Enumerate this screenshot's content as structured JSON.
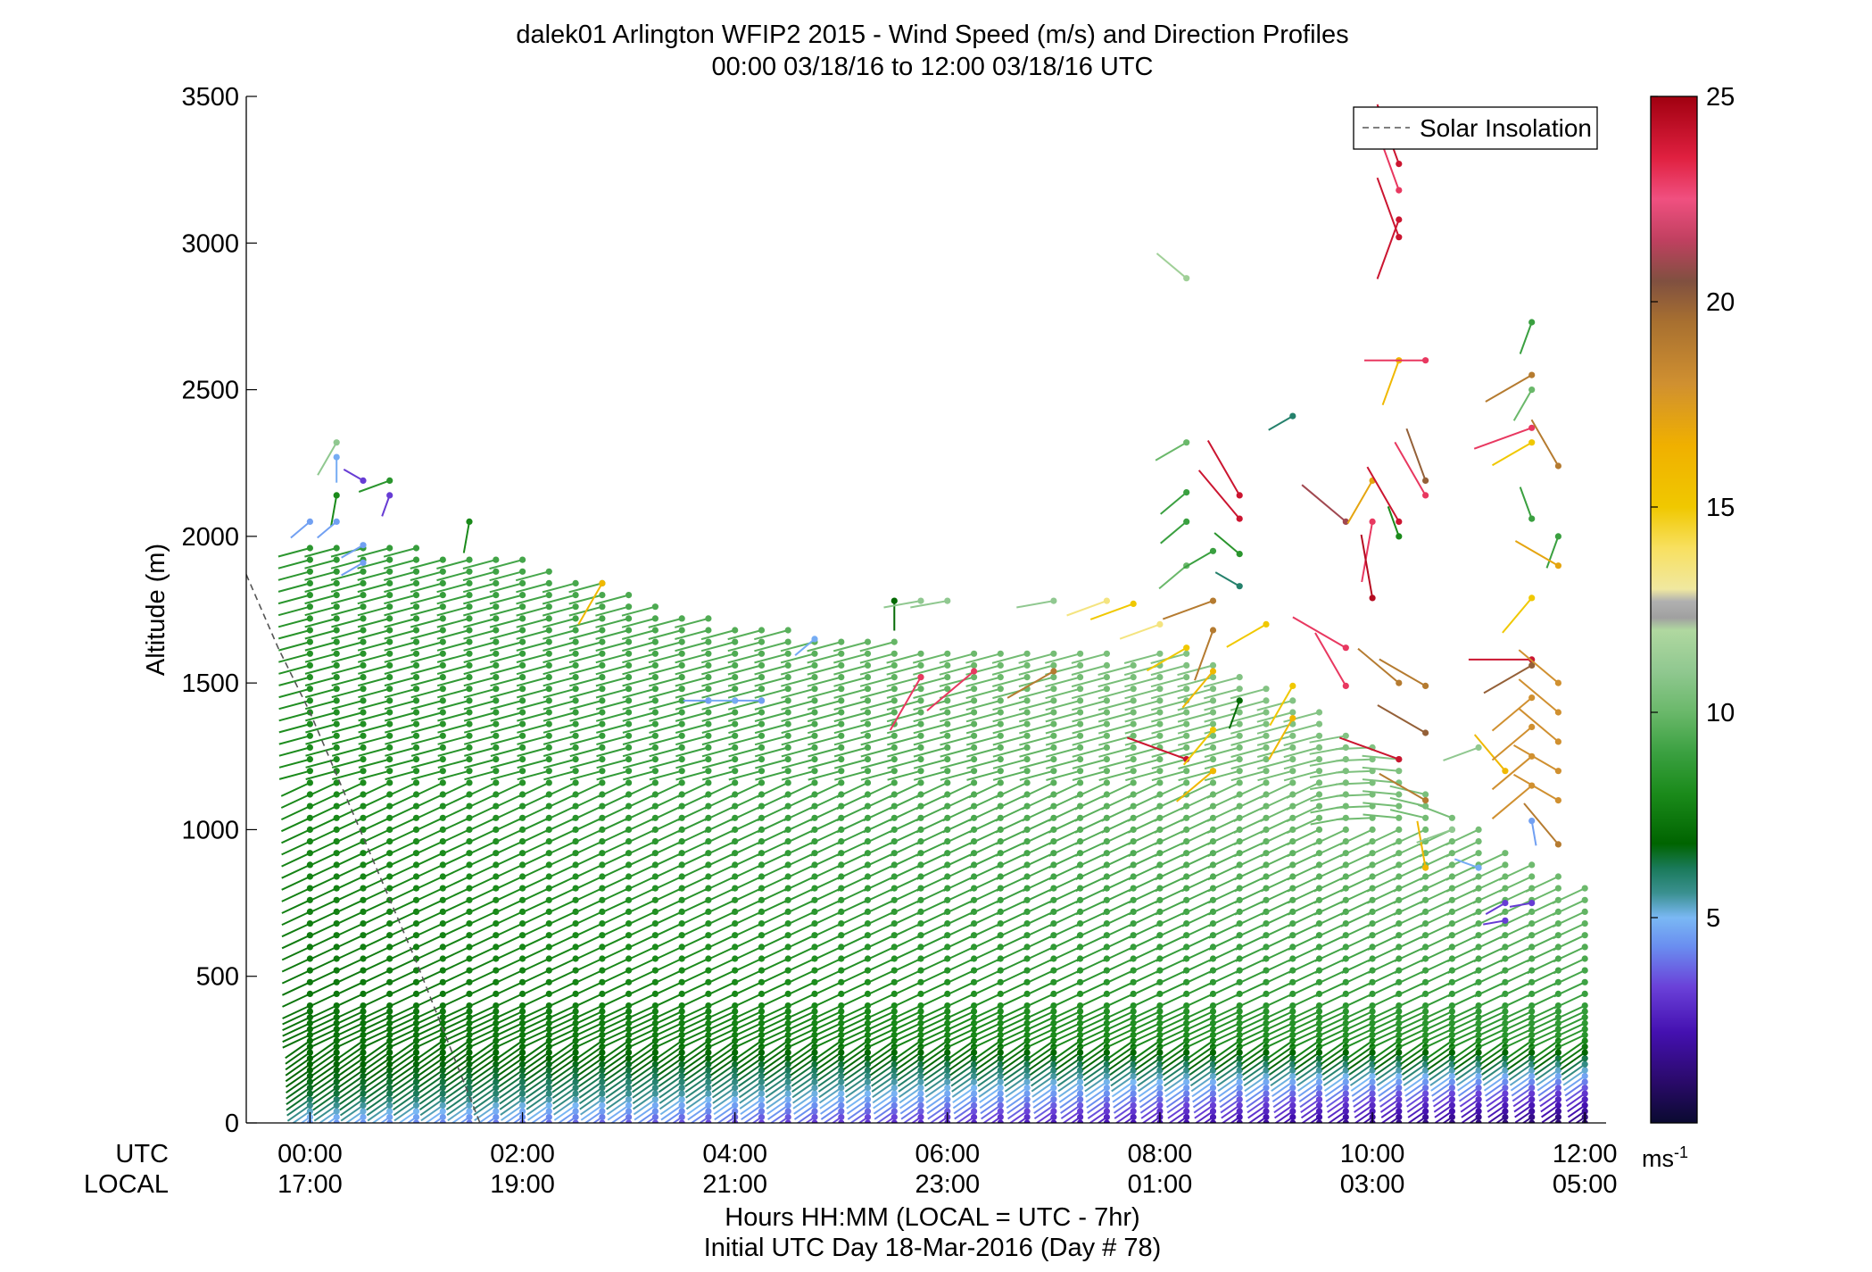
{
  "chart_data": {
    "type": "wind-barb-profile",
    "title": "dalek01 Arlington WFIP2 2015 - Wind Speed (m/s) and Direction Profiles",
    "subtitle": "00:00 03/18/16 to 12:00 03/18/16  UTC",
    "ylabel": "Altitude (m)",
    "xlabel": "Hours HH:MM  (LOCAL = UTC - 7hr)",
    "xlabel2": "Initial UTC Day 18-Mar-2016 (Day # 78)",
    "utc_label": "UTC",
    "local_label": "LOCAL",
    "xlim_hours": [
      -0.6,
      12.2
    ],
    "ylim": [
      0,
      3500
    ],
    "y_ticks": [
      0,
      500,
      1000,
      1500,
      2000,
      2500,
      3000,
      3500
    ],
    "x_ticks": [
      {
        "hour": 0,
        "utc": "00:00",
        "local": "17:00"
      },
      {
        "hour": 2,
        "utc": "02:00",
        "local": "19:00"
      },
      {
        "hour": 4,
        "utc": "04:00",
        "local": "21:00"
      },
      {
        "hour": 6,
        "utc": "06:00",
        "local": "23:00"
      },
      {
        "hour": 8,
        "utc": "08:00",
        "local": "01:00"
      },
      {
        "hour": 10,
        "utc": "10:00",
        "local": "03:00"
      },
      {
        "hour": 12,
        "utc": "12:00",
        "local": "05:00"
      }
    ],
    "legend": {
      "label": "Solar Insolation",
      "position": "top-right"
    },
    "solar_insolation_line": [
      [
        -0.6,
        1870
      ],
      [
        -0.3,
        1620
      ],
      [
        0.0,
        1400
      ],
      [
        1.0,
        550
      ],
      [
        1.6,
        0
      ]
    ],
    "colorbar": {
      "range": [
        0,
        25
      ],
      "ticks": [
        5,
        10,
        15,
        20,
        25
      ],
      "unit_label": "ms",
      "unit_exp": "-1",
      "stops": [
        [
          0,
          "#0a0a30"
        ],
        [
          1,
          "#2a0a6a"
        ],
        [
          2.2,
          "#4410b0"
        ],
        [
          3.3,
          "#6a40d8"
        ],
        [
          4.3,
          "#6a8ef0"
        ],
        [
          5.0,
          "#7ab8f4"
        ],
        [
          5.6,
          "#3a9090"
        ],
        [
          6.2,
          "#1a7a5a"
        ],
        [
          6.8,
          "#006400"
        ],
        [
          8.0,
          "#1a8a1a"
        ],
        [
          9.0,
          "#3aa040"
        ],
        [
          10.0,
          "#6ab86a"
        ],
        [
          11.0,
          "#90c890"
        ],
        [
          12.0,
          "#b0d8a0"
        ],
        [
          12.3,
          "#a0a0a0"
        ],
        [
          12.7,
          "#b0b0b0"
        ],
        [
          13.0,
          "#f0e8a0"
        ],
        [
          14.0,
          "#f8e060"
        ],
        [
          15.0,
          "#f0c800"
        ],
        [
          16.5,
          "#f0b000"
        ],
        [
          18.0,
          "#d09030"
        ],
        [
          19.5,
          "#a87030"
        ],
        [
          20.5,
          "#805040"
        ],
        [
          21.5,
          "#c04060"
        ],
        [
          22.5,
          "#f05080"
        ],
        [
          23.5,
          "#e02040"
        ],
        [
          25,
          "#a00010"
        ]
      ]
    },
    "profile_times_hours": [
      0,
      0.25,
      0.5,
      0.75,
      1,
      1.25,
      1.5,
      1.75,
      2,
      2.25,
      2.5,
      2.75,
      3,
      3.25,
      3.5,
      3.75,
      4,
      4.25,
      4.5,
      4.75,
      5,
      5.25,
      5.5,
      5.75,
      6,
      6.25,
      6.5,
      6.75,
      7,
      7.25,
      7.5,
      7.75,
      8,
      8.25,
      8.5,
      8.75,
      9,
      9.25,
      9.5,
      9.75,
      10,
      10.25,
      10.5,
      10.75,
      11,
      11.25,
      11.5,
      11.75,
      12
    ],
    "profile_top_m": [
      1970,
      1960,
      1960,
      1960,
      1960,
      1950,
      1930,
      1920,
      1920,
      1900,
      1870,
      1850,
      1820,
      1780,
      1750,
      1730,
      1700,
      1690,
      1680,
      1670,
      1660,
      1650,
      1640,
      1630,
      1630,
      1620,
      1620,
      1610,
      1600,
      1600,
      1600,
      1590,
      1600,
      1600,
      1590,
      1550,
      1500,
      1450,
      1400,
      1350,
      1300,
      1250,
      1150,
      1050,
      1000,
      950,
      900,
      850,
      800
    ],
    "profile_level_spacing_m": 40,
    "speed_model": {
      "levels_m": [
        0,
        100,
        300,
        700,
        1200,
        1800,
        3300
      ],
      "early_ms": [
        4.5,
        6.5,
        7.2,
        7.6,
        8.0,
        8.5,
        9.0
      ],
      "late_ms": [
        1.0,
        3.0,
        8.5,
        9.8,
        11.0,
        12.0,
        22.0
      ]
    },
    "direction_model": {
      "low_deg": 235,
      "mid_deg": 245,
      "high_deg": 255,
      "late_upper_deg": 330
    },
    "scattered_observations": [
      {
        "h": 0.0,
        "z": 2050,
        "s": 4.6,
        "d": 230
      },
      {
        "h": 0.25,
        "z": 2320,
        "s": 11,
        "d": 210
      },
      {
        "h": 0.25,
        "z": 2270,
        "s": 4.8,
        "d": 180
      },
      {
        "h": 0.25,
        "z": 2140,
        "s": 8,
        "d": 190
      },
      {
        "h": 0.25,
        "z": 2050,
        "s": 4.6,
        "d": 230
      },
      {
        "h": 0.5,
        "z": 2190,
        "s": 3.2,
        "d": 300
      },
      {
        "h": 0.5,
        "z": 1970,
        "s": 4.6,
        "d": 240
      },
      {
        "h": 0.5,
        "z": 1910,
        "s": 4.6,
        "d": 240
      },
      {
        "h": 0.75,
        "z": 2190,
        "s": 8.5,
        "d": 250
      },
      {
        "h": 0.75,
        "z": 2140,
        "s": 3.2,
        "d": 200
      },
      {
        "h": 1.5,
        "z": 2050,
        "s": 8,
        "d": 190
      },
      {
        "h": 2.75,
        "z": 1840,
        "s": 16,
        "d": 210
      },
      {
        "h": 3.75,
        "z": 1440,
        "s": 4.6,
        "d": 270
      },
      {
        "h": 4.0,
        "z": 1440,
        "s": 4.8,
        "d": 270
      },
      {
        "h": 4.25,
        "z": 1440,
        "s": 4.6,
        "d": 270
      },
      {
        "h": 4.75,
        "z": 1650,
        "s": 4.8,
        "d": 230
      },
      {
        "h": 5.5,
        "z": 1780,
        "s": 7,
        "d": 180
      },
      {
        "h": 5.75,
        "z": 1780,
        "s": 11,
        "d": 260
      },
      {
        "h": 6.0,
        "z": 1780,
        "s": 11,
        "d": 260
      },
      {
        "h": 5.75,
        "z": 1520,
        "s": 23,
        "d": 210
      },
      {
        "h": 6.25,
        "z": 1540,
        "s": 23,
        "d": 230
      },
      {
        "h": 7.0,
        "z": 1780,
        "s": 11,
        "d": 260
      },
      {
        "h": 7.0,
        "z": 1540,
        "s": 19,
        "d": 240
      },
      {
        "h": 7.5,
        "z": 1780,
        "s": 13.5,
        "d": 250
      },
      {
        "h": 7.75,
        "z": 1770,
        "s": 15,
        "d": 250
      },
      {
        "h": 8.0,
        "z": 1700,
        "s": 13.5,
        "d": 250
      },
      {
        "h": 8.25,
        "z": 2880,
        "s": 11.5,
        "d": 310
      },
      {
        "h": 8.25,
        "z": 2320,
        "s": 10,
        "d": 240
      },
      {
        "h": 8.25,
        "z": 2150,
        "s": 9,
        "d": 230
      },
      {
        "h": 8.25,
        "z": 2050,
        "s": 9,
        "d": 230
      },
      {
        "h": 8.25,
        "z": 1900,
        "s": 10,
        "d": 230
      },
      {
        "h": 8.25,
        "z": 1620,
        "s": 15,
        "d": 240
      },
      {
        "h": 8.25,
        "z": 1240,
        "s": 24,
        "d": 290
      },
      {
        "h": 8.5,
        "z": 1950,
        "s": 9,
        "d": 240
      },
      {
        "h": 8.5,
        "z": 1780,
        "s": 19,
        "d": 250
      },
      {
        "h": 8.5,
        "z": 1680,
        "s": 19,
        "d": 200
      },
      {
        "h": 8.5,
        "z": 1540,
        "s": 16,
        "d": 220
      },
      {
        "h": 8.5,
        "z": 1340,
        "s": 15,
        "d": 220
      },
      {
        "h": 8.5,
        "z": 1200,
        "s": 16,
        "d": 230
      },
      {
        "h": 8.75,
        "z": 2140,
        "s": 24,
        "d": 330
      },
      {
        "h": 8.75,
        "z": 2060,
        "s": 24,
        "d": 320
      },
      {
        "h": 8.75,
        "z": 1940,
        "s": 8.5,
        "d": 310
      },
      {
        "h": 8.75,
        "z": 1830,
        "s": 6,
        "d": 300
      },
      {
        "h": 8.75,
        "z": 1440,
        "s": 7,
        "d": 200
      },
      {
        "h": 9.0,
        "z": 1700,
        "s": 15,
        "d": 240
      },
      {
        "h": 9.25,
        "z": 2410,
        "s": 6,
        "d": 240
      },
      {
        "h": 9.25,
        "z": 1490,
        "s": 15,
        "d": 210
      },
      {
        "h": 9.25,
        "z": 1380,
        "s": 16,
        "d": 210
      },
      {
        "h": 9.75,
        "z": 2050,
        "s": 21,
        "d": 310
      },
      {
        "h": 9.75,
        "z": 1620,
        "s": 23,
        "d": 300
      },
      {
        "h": 9.75,
        "z": 1490,
        "s": 23,
        "d": 330
      },
      {
        "h": 10.0,
        "z": 2190,
        "s": 17,
        "d": 210
      },
      {
        "h": 10.0,
        "z": 2050,
        "s": 23,
        "d": 190
      },
      {
        "h": 10.0,
        "z": 1790,
        "s": 24.5,
        "d": 350
      },
      {
        "h": 10.25,
        "z": 3270,
        "s": 24,
        "d": 340
      },
      {
        "h": 10.25,
        "z": 3180,
        "s": 23,
        "d": 340
      },
      {
        "h": 10.25,
        "z": 3080,
        "s": 24,
        "d": 200
      },
      {
        "h": 10.25,
        "z": 3020,
        "s": 24,
        "d": 340
      },
      {
        "h": 10.25,
        "z": 2600,
        "s": 16,
        "d": 200
      },
      {
        "h": 10.25,
        "z": 2050,
        "s": 24,
        "d": 330
      },
      {
        "h": 10.25,
        "z": 2000,
        "s": 8,
        "d": 340
      },
      {
        "h": 10.25,
        "z": 1500,
        "s": 19,
        "d": 310
      },
      {
        "h": 10.25,
        "z": 1240,
        "s": 24,
        "d": 290
      },
      {
        "h": 10.5,
        "z": 2600,
        "s": 23,
        "d": 270
      },
      {
        "h": 10.5,
        "z": 2190,
        "s": 20,
        "d": 340
      },
      {
        "h": 10.5,
        "z": 2140,
        "s": 23,
        "d": 330
      },
      {
        "h": 10.5,
        "z": 1490,
        "s": 19,
        "d": 300
      },
      {
        "h": 10.5,
        "z": 1330,
        "s": 20,
        "d": 300
      },
      {
        "h": 10.5,
        "z": 1100,
        "s": 19,
        "d": 300
      },
      {
        "h": 10.5,
        "z": 870,
        "s": 16,
        "d": 350
      },
      {
        "h": 10.75,
        "z": 1000,
        "s": 11,
        "d": 250
      },
      {
        "h": 11.0,
        "z": 1280,
        "s": 11,
        "d": 250
      },
      {
        "h": 11.0,
        "z": 870,
        "s": 4.8,
        "d": 290
      },
      {
        "h": 11.25,
        "z": 1200,
        "s": 16,
        "d": 320
      },
      {
        "h": 11.25,
        "z": 750,
        "s": 3.2,
        "d": 240
      },
      {
        "h": 11.25,
        "z": 690,
        "s": 3.2,
        "d": 260
      },
      {
        "h": 11.5,
        "z": 2730,
        "s": 9,
        "d": 200
      },
      {
        "h": 11.5,
        "z": 2550,
        "s": 19,
        "d": 240
      },
      {
        "h": 11.5,
        "z": 2500,
        "s": 10,
        "d": 210
      },
      {
        "h": 11.5,
        "z": 2370,
        "s": 23,
        "d": 250
      },
      {
        "h": 11.5,
        "z": 2320,
        "s": 15,
        "d": 240
      },
      {
        "h": 11.5,
        "z": 2060,
        "s": 9,
        "d": 340
      },
      {
        "h": 11.5,
        "z": 1790,
        "s": 15,
        "d": 220
      },
      {
        "h": 11.5,
        "z": 1580,
        "s": 24,
        "d": 270
      },
      {
        "h": 11.5,
        "z": 1560,
        "s": 20,
        "d": 240
      },
      {
        "h": 11.5,
        "z": 1450,
        "s": 18,
        "d": 230
      },
      {
        "h": 11.5,
        "z": 1350,
        "s": 18,
        "d": 230
      },
      {
        "h": 11.5,
        "z": 1250,
        "s": 18,
        "d": 230
      },
      {
        "h": 11.5,
        "z": 1150,
        "s": 18,
        "d": 230
      },
      {
        "h": 11.5,
        "z": 1030,
        "s": 4.6,
        "d": 170
      },
      {
        "h": 11.5,
        "z": 750,
        "s": 3.2,
        "d": 260
      },
      {
        "h": 11.75,
        "z": 2240,
        "s": 19,
        "d": 330
      },
      {
        "h": 11.75,
        "z": 2000,
        "s": 9,
        "d": 200
      },
      {
        "h": 11.75,
        "z": 1900,
        "s": 17,
        "d": 300
      },
      {
        "h": 11.75,
        "z": 1500,
        "s": 18,
        "d": 310
      },
      {
        "h": 11.75,
        "z": 1400,
        "s": 18,
        "d": 310
      },
      {
        "h": 11.75,
        "z": 1300,
        "s": 18,
        "d": 310
      },
      {
        "h": 11.75,
        "z": 1200,
        "s": 18,
        "d": 300
      },
      {
        "h": 11.75,
        "z": 1100,
        "s": 18,
        "d": 300
      },
      {
        "h": 11.75,
        "z": 950,
        "s": 19,
        "d": 320
      }
    ]
  }
}
